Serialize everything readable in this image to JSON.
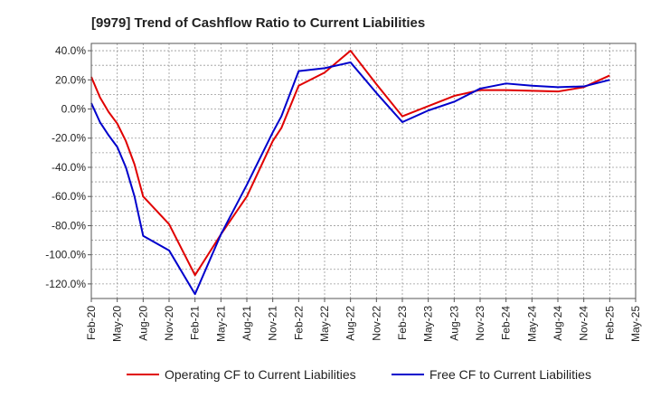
{
  "chart_data": {
    "type": "line",
    "title": "[9979]  Trend of Cashflow Ratio to Current Liabilities",
    "xlabel": "",
    "ylabel": "",
    "ylim": [
      -130,
      45
    ],
    "yticks": [
      40,
      20,
      0,
      -20,
      -40,
      -60,
      -80,
      -100,
      -120
    ],
    "ytick_labels": [
      "40.0%",
      "20.0%",
      "0.0%",
      "-20.0%",
      "-40.0%",
      "-60.0%",
      "-80.0%",
      "-100.0%",
      "-120.0%"
    ],
    "x_tick_labels": [
      "Feb-20",
      "May-20",
      "Aug-20",
      "Nov-20",
      "Feb-21",
      "May-21",
      "Aug-21",
      "Nov-21",
      "Feb-22",
      "May-22",
      "Aug-22",
      "Nov-22",
      "Feb-23",
      "May-23",
      "Aug-23",
      "Nov-23",
      "Feb-24",
      "May-24",
      "Aug-24",
      "Nov-24",
      "Feb-25",
      "May-25"
    ],
    "grid": true,
    "legend_position": "bottom",
    "series": [
      {
        "name": "Operating CF to Current Liabilities",
        "color": "#e00000",
        "points": [
          [
            "Feb-20",
            22
          ],
          [
            "Mar-20",
            8
          ],
          [
            "Apr-20",
            -2
          ],
          [
            "May-20",
            -10
          ],
          [
            "Jun-20",
            -22
          ],
          [
            "Jul-20",
            -38
          ],
          [
            "Aug-20",
            -60
          ],
          [
            "Nov-20",
            -79
          ],
          [
            "Feb-21",
            -114
          ],
          [
            "May-21",
            -86
          ],
          [
            "Aug-21",
            -60
          ],
          [
            "Nov-21",
            -22
          ],
          [
            "Dec-21",
            -13
          ],
          [
            "Feb-22",
            16
          ],
          [
            "May-22",
            25
          ],
          [
            "Aug-22",
            40
          ],
          [
            "Nov-22",
            17
          ],
          [
            "Feb-23",
            -5
          ],
          [
            "May-23",
            2
          ],
          [
            "Aug-23",
            9
          ],
          [
            "Nov-23",
            13
          ],
          [
            "Feb-24",
            13
          ],
          [
            "May-24",
            12.5
          ],
          [
            "Aug-24",
            12
          ],
          [
            "Nov-24",
            15
          ],
          [
            "Feb-25",
            23
          ]
        ]
      },
      {
        "name": "Free CF to Current Liabilities",
        "color": "#0000cc",
        "points": [
          [
            "Feb-20",
            4
          ],
          [
            "Mar-20",
            -9
          ],
          [
            "Apr-20",
            -18
          ],
          [
            "May-20",
            -26
          ],
          [
            "Jun-20",
            -40
          ],
          [
            "Jul-20",
            -60
          ],
          [
            "Aug-20",
            -87
          ],
          [
            "Nov-20",
            -97
          ],
          [
            "Feb-21",
            -127
          ],
          [
            "May-21",
            -86
          ],
          [
            "Aug-21",
            -52
          ],
          [
            "Nov-21",
            -16
          ],
          [
            "Dec-21",
            -5
          ],
          [
            "Feb-22",
            26
          ],
          [
            "May-22",
            28
          ],
          [
            "Aug-22",
            32
          ],
          [
            "Nov-22",
            11
          ],
          [
            "Feb-23",
            -9
          ],
          [
            "May-23",
            -1
          ],
          [
            "Aug-23",
            5
          ],
          [
            "Nov-23",
            14
          ],
          [
            "Feb-24",
            17.5
          ],
          [
            "May-24",
            16
          ],
          [
            "Aug-24",
            15
          ],
          [
            "Nov-24",
            15.5
          ],
          [
            "Feb-25",
            20
          ]
        ]
      }
    ]
  }
}
